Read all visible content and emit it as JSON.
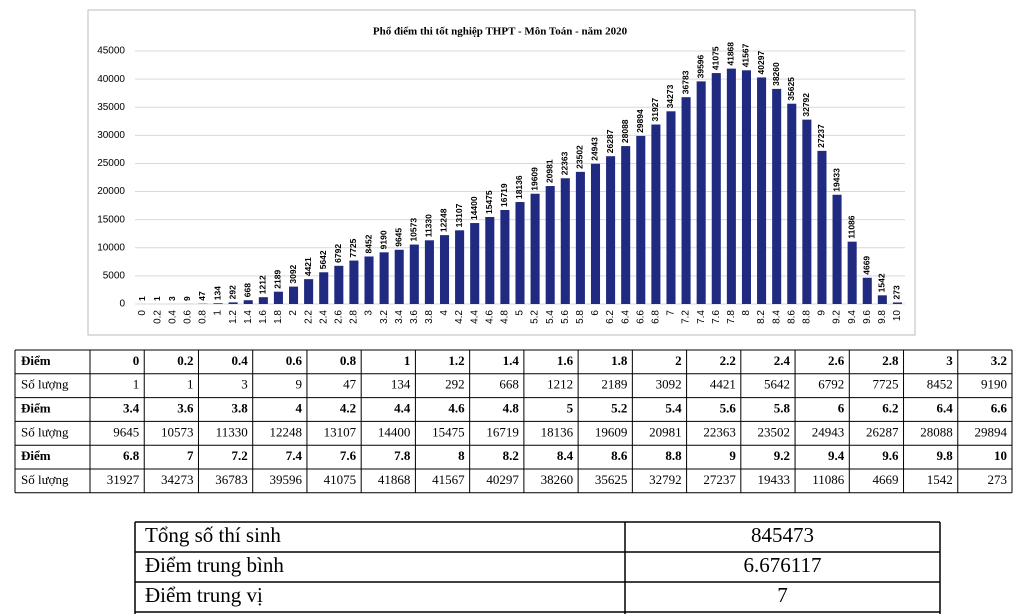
{
  "chart_data": {
    "type": "bar",
    "title": "Phổ điểm thi tốt nghiệp THPT - Môn Toán - năm 2020",
    "categories": [
      0,
      0.2,
      0.4,
      0.6,
      0.8,
      1,
      1.2,
      1.4,
      1.6,
      1.8,
      2,
      2.2,
      2.4,
      2.6,
      2.8,
      3,
      3.2,
      3.4,
      3.6,
      3.8,
      4,
      4.2,
      4.4,
      4.6,
      4.8,
      5,
      5.2,
      5.4,
      5.6,
      5.8,
      6,
      6.2,
      6.4,
      6.6,
      6.8,
      7,
      7.2,
      7.4,
      7.6,
      7.8,
      8,
      8.2,
      8.4,
      8.6,
      8.8,
      9,
      9.2,
      9.4,
      9.6,
      9.8,
      10
    ],
    "values": [
      1,
      1,
      3,
      9,
      47,
      134,
      292,
      668,
      1212,
      2189,
      3092,
      4421,
      5642,
      6792,
      7725,
      8452,
      9190,
      9645,
      10573,
      11330,
      12248,
      13107,
      14400,
      15475,
      16719,
      18136,
      19609,
      20981,
      22363,
      23502,
      24943,
      26287,
      28088,
      29894,
      31927,
      34273,
      36783,
      39596,
      41075,
      41868,
      41567,
      40297,
      38260,
      35625,
      32792,
      27237,
      19433,
      11086,
      4669,
      1542,
      273
    ],
    "color": "#1f2a80",
    "ylim": [
      0,
      45000
    ],
    "yticks": [
      0,
      5000,
      10000,
      15000,
      20000,
      25000,
      30000,
      35000,
      40000,
      45000
    ],
    "grid": true
  },
  "table": {
    "row_labels": [
      "Điểm",
      "Số lượng"
    ]
  },
  "summary": {
    "rows": [
      [
        "Tổng số thí sinh",
        845473
      ],
      [
        "Điểm trung bình",
        6.676117
      ],
      [
        "Điểm trung vị",
        7
      ]
    ]
  }
}
